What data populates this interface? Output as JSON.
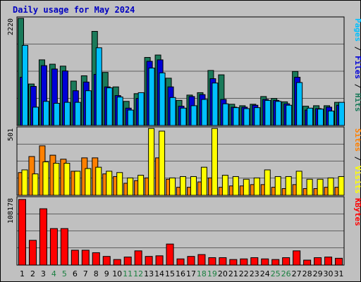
{
  "chart_data": {
    "type": "bar",
    "title": "Daily usage for May 2024",
    "categories": [
      "1",
      "2",
      "3",
      "4",
      "5",
      "6",
      "7",
      "8",
      "9",
      "10",
      "11",
      "12",
      "13",
      "14",
      "15",
      "16",
      "17",
      "18",
      "19",
      "20",
      "21",
      "22",
      "23",
      "24",
      "25",
      "26",
      "27",
      "28",
      "29",
      "30",
      "31"
    ],
    "weekend_days": [
      "4",
      "5",
      "11",
      "12",
      "18",
      "19",
      "25",
      "26"
    ],
    "colors": {
      "hits": "#1a7a5a",
      "files": "#0000d8",
      "pages": "#00c0ff",
      "visits": "#ffff00",
      "sites": "#ff8000",
      "kbytes": "#ff0000",
      "weekday_label": "#000000",
      "weekend_label": "#1a8040",
      "background": "#c0c0c0"
    },
    "panels": [
      {
        "id": "pages-files-hits",
        "ymax_label": "2220",
        "ylim": [
          0,
          2220
        ],
        "side_label_parts": [
          {
            "text": "Pages",
            "color": "#00c0ff"
          },
          {
            "text": " / ",
            "color": "#000000"
          },
          {
            "text": "Files",
            "color": "#0000d8"
          },
          {
            "text": " / ",
            "color": "#000000"
          },
          {
            "text": "Hits",
            "color": "#1a7a5a"
          }
        ],
        "series": [
          {
            "name": "Hits",
            "values": [
              2220,
              860,
              1360,
              1270,
              1230,
              920,
              1030,
              1950,
              1100,
              800,
              500,
              660,
              1410,
              1460,
              980,
              520,
              630,
              680,
              1140,
              1050,
              440,
              410,
              440,
              600,
              560,
              490,
              1120,
              400,
              410,
              410,
              480
            ]
          },
          {
            "name": "Files",
            "values": [
              1000,
              810,
              1240,
              1170,
              1130,
              720,
              900,
              1060,
              800,
              620,
              360,
              560,
              1330,
              1360,
              800,
              400,
              600,
              640,
              970,
              540,
              380,
              380,
              420,
              540,
              520,
              450,
              1000,
              320,
              350,
              380,
              420
            ]
          },
          {
            "name": "Pages",
            "values": [
              1660,
              380,
              500,
              460,
              480,
              480,
              720,
              1610,
              780,
              590,
              320,
              680,
              1190,
              1090,
              580,
              360,
              410,
              540,
              880,
              450,
              370,
              350,
              370,
              520,
              500,
              420,
              890,
              360,
              340,
              300,
              480
            ]
          }
        ]
      },
      {
        "id": "sites-visits",
        "ymax_label": "501",
        "ylim": [
          0,
          501
        ],
        "side_label_parts": [
          {
            "text": "Sites",
            "color": "#ff8000"
          },
          {
            "text": " / ",
            "color": "#000000"
          },
          {
            "text": "Visits",
            "color": "#ffff00"
          }
        ],
        "series": [
          {
            "name": "Visits",
            "values": [
              190,
              160,
              250,
              240,
              240,
              180,
              200,
              210,
              180,
              170,
              130,
              150,
              500,
              480,
              130,
              140,
              140,
              210,
              500,
              150,
              140,
              120,
              130,
              190,
              140,
              140,
              180,
              120,
              120,
              130,
              140
            ]
          },
          {
            "name": "Sites",
            "values": [
              170,
              290,
              370,
              300,
              270,
              180,
              280,
              280,
              160,
              140,
              90,
              110,
              130,
              280,
              120,
              60,
              60,
              100,
              130,
              60,
              70,
              70,
              80,
              80,
              60,
              50,
              80,
              50,
              50,
              60,
              60
            ]
          }
        ]
      },
      {
        "id": "kbytes",
        "ymax_label": "108178",
        "ylim": [
          0,
          108178
        ],
        "side_label_parts": [
          {
            "text": "KBytes",
            "color": "#ff0000"
          }
        ],
        "series": [
          {
            "name": "KBytes",
            "values": [
              106000,
              40000,
              91000,
              59000,
              59000,
              24000,
              24000,
              20000,
              14000,
              9000,
              13000,
              23000,
              14000,
              15000,
              34000,
              10000,
              14000,
              17000,
              12000,
              12000,
              9000,
              10000,
              12000,
              10000,
              9000,
              12000,
              23000,
              8000,
              12000,
              13000,
              11000
            ]
          }
        ]
      }
    ]
  }
}
